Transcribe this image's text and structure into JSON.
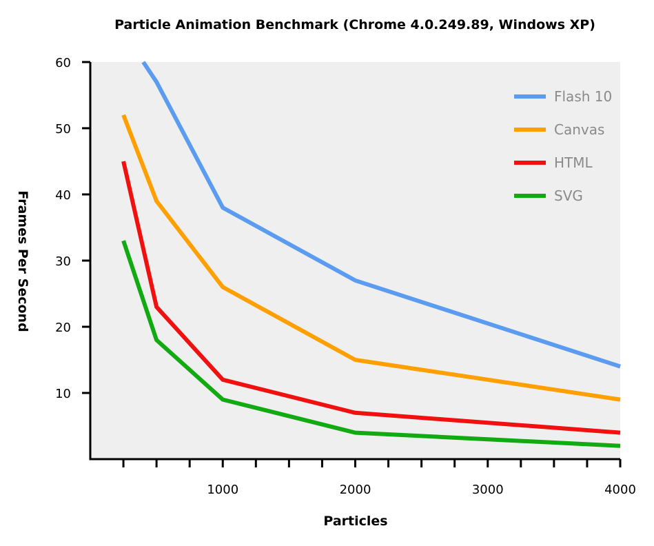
{
  "chart_data": {
    "type": "line",
    "title": "Particle Animation Benchmark (Chrome 4.0.249.89, Windows XP)",
    "xlabel": "Particles",
    "ylabel": "Frames Per Second",
    "xlim": [
      0,
      4000
    ],
    "ylim": [
      0,
      60
    ],
    "x_ticks": [
      1000,
      2000,
      3000,
      4000
    ],
    "x_minor_ticks": [
      250,
      500,
      750,
      1000,
      1250,
      1500,
      1750,
      2000,
      2250,
      2500,
      2750,
      3000,
      3250,
      3500,
      3750,
      4000
    ],
    "y_ticks": [
      10,
      20,
      30,
      40,
      50,
      60
    ],
    "grid": false,
    "plot_background": "#efefef",
    "legend_position": "top-right",
    "series": [
      {
        "name": "Flash 10",
        "color": "#5b9cf0",
        "points": [
          [
            400,
            60
          ],
          [
            500,
            57
          ],
          [
            1000,
            38
          ],
          [
            2000,
            27
          ],
          [
            4000,
            14
          ]
        ]
      },
      {
        "name": "Canvas",
        "color": "#ff9f00",
        "points": [
          [
            250,
            52
          ],
          [
            500,
            39
          ],
          [
            1000,
            26
          ],
          [
            2000,
            15
          ],
          [
            4000,
            9
          ]
        ]
      },
      {
        "name": "HTML",
        "color": "#f01010",
        "points": [
          [
            250,
            45
          ],
          [
            500,
            23
          ],
          [
            1000,
            12
          ],
          [
            2000,
            7
          ],
          [
            4000,
            4
          ]
        ]
      },
      {
        "name": "SVG",
        "color": "#11aa11",
        "points": [
          [
            250,
            33
          ],
          [
            500,
            18
          ],
          [
            1000,
            9
          ],
          [
            2000,
            4
          ],
          [
            4000,
            2
          ]
        ]
      }
    ]
  }
}
